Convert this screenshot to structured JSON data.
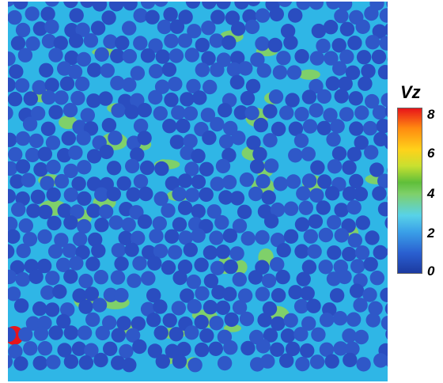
{
  "colorbar": {
    "title": "Vz",
    "ticks": [
      "8",
      "6",
      "4",
      "2",
      "0"
    ],
    "min": 0,
    "max": 8,
    "colors": {
      "low": "#1c3aa0",
      "mid_low": "#58d2e8",
      "mid": "#7fd06a",
      "mid_high": "#ffd21a",
      "high": "#e8141a"
    }
  }
}
